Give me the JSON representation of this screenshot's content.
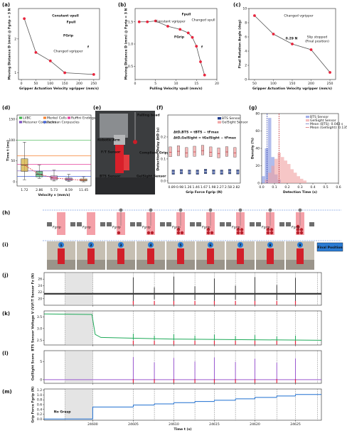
{
  "panel_labels": [
    "(a)",
    "(b)",
    "(c)",
    "(d)",
    "(e)",
    "(f)",
    "(g)",
    "(h)",
    "(i)",
    "(j)",
    "(k)",
    "(l)",
    "(m)"
  ],
  "photo_e": {
    "labels": [
      "Robotic Arm",
      "F/T Sensor",
      "Falling bead",
      "Compliant Gripper",
      "GelSight Sensor",
      "BTS Sensor"
    ]
  },
  "diagram_h": {
    "labels": [
      "Fgrip",
      "Fgrip",
      "Fgrip",
      "Fgrip",
      "Fgrip",
      "Fgrip",
      "Fgrip",
      "Fgrip",
      "Fgrip"
    ]
  },
  "photos_i": {
    "numbers": [
      "1",
      "2",
      "3",
      "4",
      "5",
      "6",
      "7",
      "8",
      "9"
    ],
    "final": "Final Position"
  },
  "chart_data": [
    {
      "type": "line",
      "xlabel": "Gripper Actuation Velocity vgripper (mm/s)",
      "ylabel": "Moving Distance D (mm) @ Fgrip = 3 N",
      "x": [
        10,
        50,
        100,
        150,
        250
      ],
      "values": [
        2.6,
        1.6,
        1.35,
        1.0,
        0.95
      ],
      "color": "#e8243c",
      "line_color": "#555555",
      "xlim": [
        -10,
        270
      ],
      "ylim": [
        0.8,
        2.9
      ],
      "xticks": [
        0,
        50,
        100,
        150,
        200,
        250
      ],
      "yticks": [
        1,
        2
      ],
      "annotations": [
        "Constant vpull",
        "Fpull",
        "FGrip",
        "Changed vgripper",
        "f"
      ]
    },
    {
      "type": "line",
      "xlabel": "Pulling Velocity vpull (mm/s)",
      "ylabel": "Moving Distance D (mm) @ Fgrip = 3 N",
      "x": [
        1,
        3,
        5,
        8,
        11,
        13,
        14,
        15,
        16,
        17
      ],
      "values": [
        1.5,
        1.5,
        1.52,
        1.4,
        1.33,
        1.25,
        1.15,
        0.95,
        0.6,
        0.3
      ],
      "color": "#e8243c",
      "line_color": "#555555",
      "xlim": [
        0,
        20
      ],
      "ylim": [
        0.2,
        1.8
      ],
      "xticks": [
        0,
        5,
        10,
        15,
        20
      ],
      "yticks": [
        0.5,
        {
          "value": 1,
          "label": "1.0"
        },
        1.5
      ],
      "annotations": [
        "Constant vgripper",
        "Fpull",
        "Changed vpull",
        "FGrip",
        "f"
      ]
    },
    {
      "type": "line",
      "xlabel": "Gripper Actuation Velocity vgripper (mm/s)",
      "ylabel": "Final Rotation Angle (deg)",
      "x": [
        50,
        100,
        150,
        200,
        250
      ],
      "values": [
        9,
        6.4,
        5.0,
        4.2,
        1.0
      ],
      "color": "#e8243c",
      "line_color": "#555555",
      "xlim": [
        35,
        265
      ],
      "ylim": [
        0,
        10
      ],
      "xticks": [
        50,
        100,
        150,
        200,
        250
      ],
      "yticks": [
        0,
        2,
        4,
        6,
        8,
        10
      ],
      "annotations": [
        "Changed vgripper",
        "Slip stopped",
        "(Final position)",
        "0.29 N"
      ]
    },
    {
      "type": "box",
      "xlabel": "Velocity v (mm/s)",
      "ylabel": "Time t (ms)",
      "categories": [
        "1.72",
        "2.86",
        "5.73",
        "8.59",
        "11.45"
      ],
      "boxes": [
        {
          "min": 5,
          "q1": 25,
          "median": 40,
          "q3": 55,
          "max": 95
        },
        {
          "min": 8,
          "q1": 12,
          "median": 18,
          "q3": 25,
          "max": 40
        },
        {
          "min": 2,
          "q1": 5,
          "median": 9,
          "q3": 14,
          "max": 28
        },
        {
          "min": 1,
          "q1": 3,
          "median": 6,
          "q3": 9,
          "max": 18
        },
        {
          "min": 0,
          "q1": 2,
          "median": 4,
          "q3": 7,
          "max": 12
        }
      ],
      "box_colors": [
        "#d4b03c",
        "#4cb87a",
        "#e889c4",
        "#a07cc8",
        "#f5a55a"
      ],
      "median_color": "#e8243c",
      "thresholds": [
        {
          "name": "LI/BC",
          "color": "#3cb44b",
          "value": 100
        },
        {
          "name": "Merkel Cells",
          "color": "#f58231",
          "value": 62
        },
        {
          "name": "Ruffini Endings",
          "color": "#e6409b",
          "value": 42
        },
        {
          "name": "Meissner Corpuscles",
          "color": "#7b4fc0",
          "value": 26
        },
        {
          "name": "Pacinian Corpuscles",
          "color": "#4363d8",
          "value": 13
        }
      ],
      "ylim": [
        -10,
        160
      ],
      "yticks": [
        0,
        50,
        100,
        150
      ]
    },
    {
      "type": "box",
      "xlabel": "Grip Force Fgrip (N)",
      "ylabel": "Detection Delay ΔtD (s)",
      "categories": [
        "0.89",
        "0.98",
        "1.26",
        "1.46",
        "1.67",
        "1.98",
        "2.27",
        "2.58",
        "2.82"
      ],
      "series": [
        {
          "name": "BTS Sensor",
          "color": "#1f3b8c",
          "q1": [
            0.03,
            0.032,
            0.031,
            0.03,
            0.033,
            0.031,
            0.03,
            0.032,
            0.031
          ],
          "median": [
            0.04,
            0.042,
            0.041,
            0.04,
            0.043,
            0.041,
            0.04,
            0.042,
            0.041
          ],
          "q3": [
            0.05,
            0.052,
            0.05,
            0.05,
            0.054,
            0.051,
            0.05,
            0.053,
            0.051
          ]
        },
        {
          "name": "GelSight Sensor",
          "color": "#f2a7a7",
          "q1": [
            0.11,
            0.115,
            0.108,
            0.112,
            0.118,
            0.11,
            0.105,
            0.112,
            0.108
          ],
          "median": [
            0.13,
            0.135,
            0.128,
            0.132,
            0.138,
            0.13,
            0.125,
            0.132,
            0.128
          ],
          "q3": [
            0.155,
            0.16,
            0.152,
            0.158,
            0.162,
            0.155,
            0.15,
            0.156,
            0.152
          ]
        }
      ],
      "ylim": [
        -0.01,
        0.3
      ],
      "yticks": [
        {
          "value": 0,
          "label": "0.0"
        },
        0.1,
        0.2
      ],
      "annotations": [
        "ΔtD,BTS = tBTS − tFmax",
        "ΔtD,GelSight = tGelSight − tFmax"
      ],
      "annotation_colors": [
        "#e8243c",
        "#2060d0"
      ]
    },
    {
      "type": "histogram",
      "xlabel": "Detection Time (s)",
      "ylabel": "Density (%)",
      "bins": [
        0,
        0.025,
        0.05,
        0.075,
        0.1,
        0.125,
        0.15,
        0.175,
        0.2,
        0.225,
        0.25,
        0.275,
        0.3,
        0.325,
        0.35
      ],
      "series": [
        {
          "name": "BTS Sensor",
          "color": "#7d8fe0",
          "values": [
            8,
            40,
            75,
            30,
            10,
            4,
            0,
            0,
            0,
            0,
            0,
            0,
            0,
            0
          ]
        },
        {
          "name": "GelSight Sensor",
          "color": "#f0a0a0",
          "values": [
            0,
            4,
            12,
            20,
            28,
            35,
            30,
            26,
            22,
            16,
            12,
            8,
            5,
            3
          ]
        }
      ],
      "means": [
        0.043,
        0.135
      ],
      "mean_labels": [
        "Mean (BTS): 0.043 s",
        "Mean (GelSight): 0.135 s"
      ],
      "mean_colors": [
        "#2030a0",
        "#c0202a"
      ],
      "xlim": [
        0,
        0.6
      ],
      "ylim": [
        0,
        80
      ],
      "xticks": [
        {
          "value": 0,
          "label": "0.0"
        },
        0.1,
        0.2,
        0.3,
        0.4,
        0.5,
        0.6
      ],
      "yticks": [
        0,
        20,
        40,
        60,
        80
      ]
    },
    {
      "type": "timeseries",
      "ylabel": "F/T Sensor Fz (N)",
      "color": "#3a3a3a",
      "x": [
        24594,
        24628.2
      ],
      "values": [
        21.5,
        21.5
      ],
      "spikes": {
        "x": [
          24605,
          24607.6,
          24610,
          24612.6,
          24615,
          24617.6,
          24620,
          24622.7,
          24625
        ],
        "low": [
          18.6,
          19.8,
          18.4,
          19.6,
          18.8,
          19.7,
          18.5,
          19.5,
          18.7
        ],
        "high": [
          26.5,
          23.5,
          26.8,
          23.8,
          26.2,
          24,
          26.6,
          24.2,
          26.4
        ]
      },
      "detections": [
        24605,
        24607.6,
        24610,
        24612.6,
        24615,
        24617.6,
        24620,
        24622.7,
        24625
      ],
      "xlim": [
        24594,
        24628.2
      ],
      "ylim": [
        18,
        28
      ],
      "yticks": [
        20,
        22,
        24,
        26
      ]
    },
    {
      "type": "timeseries",
      "ylabel": "BTS Sensor Voltage V (V)",
      "color": "#1faa59",
      "x": [
        24594,
        24599.9,
        24600.3,
        24601,
        24610,
        24628.2
      ],
      "values": [
        3.62,
        3.6,
        2.75,
        2.62,
        2.55,
        2.5
      ],
      "spikes": {
        "x": [
          24605,
          24607.6,
          24610,
          24612.6,
          24615,
          24617.6,
          24620,
          24622.7,
          24625
        ],
        "low": [
          2.52,
          2.5,
          2.5,
          2.49,
          2.49,
          2.48,
          2.48,
          2.47,
          2.47
        ],
        "high": [
          2.78,
          2.7,
          2.76,
          2.7,
          2.74,
          2.68,
          2.72,
          2.66,
          2.7
        ]
      },
      "detections": [
        24605,
        24607.6,
        24610,
        24612.6,
        24615,
        24617.6,
        24620,
        24622.7,
        24625
      ],
      "xlim": [
        24594,
        24628.2
      ],
      "ylim": [
        2.3,
        3.75
      ],
      "yticks": [
        2.5,
        {
          "value": 3,
          "label": "3.0"
        },
        3.5
      ]
    },
    {
      "type": "timeseries",
      "ylabel": "GelSight Score",
      "color": "#9b59d0",
      "x": [
        24594,
        24628.2
      ],
      "values": [
        0,
        0
      ],
      "spikes": {
        "x": [
          24605,
          24607.6,
          24610,
          24612.6,
          24615,
          24617.6,
          24620,
          24622.7,
          24625
        ],
        "low": [
          0,
          0,
          0,
          0,
          0,
          0,
          0,
          0,
          0
        ],
        "high": [
          6.2,
          4.8,
          6.0,
          5.0,
          6.1,
          4.9,
          5.8,
          4.7,
          5.9
        ]
      },
      "detections": [
        24605,
        24607.6,
        24610,
        24612.6,
        24615,
        24617.6,
        24620,
        24622.7,
        24625
      ],
      "xlim": [
        24594,
        24628.2
      ],
      "ylim": [
        -1,
        8
      ],
      "yticks": [
        0,
        5
      ]
    },
    {
      "type": "step",
      "ylabel": "Grip Force Fgrip (N)",
      "xlabel": "Time t (s)",
      "color": "#1f6fd0",
      "x": [
        24594,
        24600,
        24605,
        24607.6,
        24610,
        24612.6,
        24615,
        24617.6,
        24620,
        24622.7,
        24625
      ],
      "values": [
        0,
        0.5,
        0.58,
        0.63,
        0.68,
        0.73,
        0.78,
        0.84,
        0.9,
        0.96,
        1.02
      ],
      "xlim": [
        24594,
        24628.2
      ],
      "ylim": [
        -0.05,
        1.25
      ],
      "xticks": [
        24600,
        24605,
        24610,
        24615,
        24620,
        24625
      ],
      "yticks": [
        {
          "value": 0,
          "label": "0.0"
        },
        0.2,
        0.4,
        0.6,
        0.8,
        {
          "value": 1,
          "label": "1.0"
        },
        1.2
      ],
      "event_lines": [
        24596.6,
        24600,
        24605,
        24607.6,
        24610,
        24612.6,
        24615,
        24617.6,
        24620,
        24622.7,
        24625,
        24627.7
      ],
      "shade": [
        24596.6,
        24600
      ],
      "annotation": "No Grasp"
    }
  ]
}
